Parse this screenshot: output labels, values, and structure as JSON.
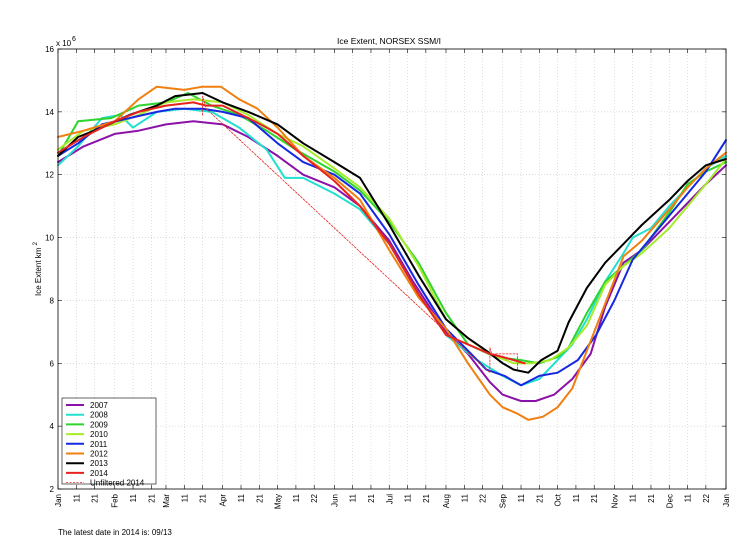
{
  "chart_data": {
    "type": "line",
    "title": "Ice Extent, NORSEX SSM/I",
    "ylabel": "Ice Extent km",
    "ylabel_superscript": "2",
    "y_exponent_base": "x 10",
    "y_exponent": "6",
    "ylim": [
      2,
      16
    ],
    "yticks": [
      2,
      4,
      6,
      8,
      10,
      12,
      14,
      16
    ],
    "xlim": [
      1,
      366
    ],
    "x_ticks": [
      {
        "d": 1,
        "label": "Jan"
      },
      {
        "d": 11,
        "label": "11"
      },
      {
        "d": 21,
        "label": "21"
      },
      {
        "d": 32,
        "label": "Feb"
      },
      {
        "d": 42,
        "label": "11"
      },
      {
        "d": 52,
        "label": "21"
      },
      {
        "d": 60,
        "label": "Mar"
      },
      {
        "d": 70,
        "label": "11"
      },
      {
        "d": 80,
        "label": "21"
      },
      {
        "d": 91,
        "label": "Apr"
      },
      {
        "d": 101,
        "label": "11"
      },
      {
        "d": 111,
        "label": "21"
      },
      {
        "d": 121,
        "label": "May"
      },
      {
        "d": 131,
        "label": "11"
      },
      {
        "d": 141,
        "label": "22"
      },
      {
        "d": 152,
        "label": "Jun"
      },
      {
        "d": 162,
        "label": "11"
      },
      {
        "d": 172,
        "label": "21"
      },
      {
        "d": 182,
        "label": "Jul"
      },
      {
        "d": 192,
        "label": "11"
      },
      {
        "d": 202,
        "label": "21"
      },
      {
        "d": 213,
        "label": "Aug"
      },
      {
        "d": 223,
        "label": "11"
      },
      {
        "d": 233,
        "label": "22"
      },
      {
        "d": 244,
        "label": "Sep"
      },
      {
        "d": 254,
        "label": "11"
      },
      {
        "d": 264,
        "label": "21"
      },
      {
        "d": 274,
        "label": "Oct"
      },
      {
        "d": 284,
        "label": "11"
      },
      {
        "d": 294,
        "label": "21"
      },
      {
        "d": 305,
        "label": "Nov"
      },
      {
        "d": 315,
        "label": "11"
      },
      {
        "d": 325,
        "label": "21"
      },
      {
        "d": 335,
        "label": "Dec"
      },
      {
        "d": 345,
        "label": "11"
      },
      {
        "d": 355,
        "label": "22"
      },
      {
        "d": 366,
        "label": "Jan"
      }
    ],
    "grid": "dotted",
    "legend_position": "bottom-left",
    "series": [
      {
        "name": "2007",
        "color": "#8b12a8",
        "points": [
          [
            1,
            12.4
          ],
          [
            15,
            12.9
          ],
          [
            32,
            13.3
          ],
          [
            45,
            13.4
          ],
          [
            60,
            13.6
          ],
          [
            75,
            13.7
          ],
          [
            91,
            13.6
          ],
          [
            105,
            13.2
          ],
          [
            121,
            12.6
          ],
          [
            135,
            12.0
          ],
          [
            152,
            11.6
          ],
          [
            166,
            11.0
          ],
          [
            182,
            9.9
          ],
          [
            195,
            8.6
          ],
          [
            213,
            7.0
          ],
          [
            225,
            6.3
          ],
          [
            237,
            5.4
          ],
          [
            244,
            5.0
          ],
          [
            254,
            4.8
          ],
          [
            262,
            4.8
          ],
          [
            272,
            5.0
          ],
          [
            282,
            5.5
          ],
          [
            292,
            6.3
          ],
          [
            300,
            7.8
          ],
          [
            310,
            9.2
          ],
          [
            320,
            9.6
          ],
          [
            335,
            10.5
          ],
          [
            345,
            11.1
          ],
          [
            355,
            11.7
          ],
          [
            366,
            12.3
          ]
        ]
      },
      {
        "name": "2008",
        "color": "#22e0d0",
        "points": [
          [
            1,
            12.3
          ],
          [
            12,
            12.9
          ],
          [
            25,
            13.8
          ],
          [
            35,
            13.9
          ],
          [
            42,
            13.5
          ],
          [
            55,
            14.0
          ],
          [
            70,
            14.1
          ],
          [
            85,
            14.0
          ],
          [
            100,
            13.5
          ],
          [
            115,
            12.8
          ],
          [
            125,
            11.9
          ],
          [
            135,
            11.9
          ],
          [
            152,
            11.4
          ],
          [
            166,
            10.9
          ],
          [
            182,
            9.8
          ],
          [
            198,
            8.2
          ],
          [
            213,
            6.9
          ],
          [
            230,
            6.1
          ],
          [
            244,
            5.6
          ],
          [
            254,
            5.3
          ],
          [
            264,
            5.5
          ],
          [
            274,
            6.1
          ],
          [
            282,
            6.6
          ],
          [
            290,
            7.4
          ],
          [
            300,
            8.6
          ],
          [
            310,
            9.5
          ],
          [
            315,
            10.0
          ],
          [
            325,
            10.3
          ],
          [
            335,
            11.0
          ],
          [
            345,
            11.6
          ],
          [
            355,
            12.2
          ],
          [
            366,
            12.6
          ]
        ]
      },
      {
        "name": "2009",
        "color": "#2ed32e",
        "points": [
          [
            1,
            12.6
          ],
          [
            12,
            13.7
          ],
          [
            30,
            13.8
          ],
          [
            45,
            14.2
          ],
          [
            60,
            14.3
          ],
          [
            72,
            14.6
          ],
          [
            85,
            14.2
          ],
          [
            100,
            13.9
          ],
          [
            115,
            13.4
          ],
          [
            131,
            12.8
          ],
          [
            152,
            12.1
          ],
          [
            166,
            11.5
          ],
          [
            182,
            10.5
          ],
          [
            198,
            9.2
          ],
          [
            213,
            7.6
          ],
          [
            225,
            6.6
          ],
          [
            240,
            6.2
          ],
          [
            254,
            6.1
          ],
          [
            264,
            6.0
          ],
          [
            274,
            6.2
          ],
          [
            280,
            6.5
          ],
          [
            290,
            7.6
          ],
          [
            300,
            8.6
          ],
          [
            310,
            9.1
          ],
          [
            320,
            9.6
          ],
          [
            335,
            10.8
          ],
          [
            345,
            11.7
          ],
          [
            355,
            12.1
          ],
          [
            366,
            12.4
          ]
        ]
      },
      {
        "name": "2010",
        "color": "#a6ec2a",
        "points": [
          [
            1,
            12.8
          ],
          [
            15,
            13.4
          ],
          [
            32,
            13.6
          ],
          [
            45,
            13.9
          ],
          [
            60,
            14.3
          ],
          [
            75,
            14.4
          ],
          [
            91,
            14.3
          ],
          [
            105,
            13.9
          ],
          [
            121,
            13.3
          ],
          [
            135,
            12.9
          ],
          [
            152,
            12.2
          ],
          [
            166,
            11.6
          ],
          [
            182,
            10.6
          ],
          [
            198,
            9.1
          ],
          [
            213,
            7.4
          ],
          [
            225,
            6.8
          ],
          [
            237,
            6.3
          ],
          [
            250,
            6.0
          ],
          [
            260,
            6.0
          ],
          [
            270,
            6.1
          ],
          [
            280,
            6.5
          ],
          [
            290,
            7.2
          ],
          [
            300,
            8.5
          ],
          [
            310,
            9.1
          ],
          [
            320,
            9.5
          ],
          [
            335,
            10.3
          ],
          [
            345,
            11.0
          ],
          [
            355,
            11.7
          ],
          [
            366,
            12.5
          ]
        ]
      },
      {
        "name": "2011",
        "color": "#1628e0",
        "points": [
          [
            1,
            12.6
          ],
          [
            12,
            13.0
          ],
          [
            25,
            13.6
          ],
          [
            40,
            13.8
          ],
          [
            55,
            14.0
          ],
          [
            65,
            14.1
          ],
          [
            80,
            14.1
          ],
          [
            91,
            14.0
          ],
          [
            105,
            13.8
          ],
          [
            121,
            13.0
          ],
          [
            135,
            12.4
          ],
          [
            152,
            12.0
          ],
          [
            166,
            11.4
          ],
          [
            182,
            10.1
          ],
          [
            198,
            8.5
          ],
          [
            213,
            7.1
          ],
          [
            225,
            6.4
          ],
          [
            235,
            5.8
          ],
          [
            245,
            5.6
          ],
          [
            254,
            5.3
          ],
          [
            264,
            5.6
          ],
          [
            274,
            5.7
          ],
          [
            285,
            6.1
          ],
          [
            295,
            6.9
          ],
          [
            305,
            8.0
          ],
          [
            315,
            9.3
          ],
          [
            325,
            10.0
          ],
          [
            335,
            10.7
          ],
          [
            345,
            11.4
          ],
          [
            355,
            12.1
          ],
          [
            366,
            13.1
          ]
        ]
      },
      {
        "name": "2012",
        "color": "#f07f10",
        "points": [
          [
            1,
            13.2
          ],
          [
            15,
            13.4
          ],
          [
            32,
            13.7
          ],
          [
            45,
            14.4
          ],
          [
            55,
            14.8
          ],
          [
            70,
            14.7
          ],
          [
            80,
            14.8
          ],
          [
            90,
            14.8
          ],
          [
            100,
            14.4
          ],
          [
            110,
            14.1
          ],
          [
            121,
            13.5
          ],
          [
            135,
            12.6
          ],
          [
            152,
            11.9
          ],
          [
            166,
            11.2
          ],
          [
            182,
            9.6
          ],
          [
            198,
            8.1
          ],
          [
            213,
            7.1
          ],
          [
            225,
            6.0
          ],
          [
            237,
            5.0
          ],
          [
            244,
            4.6
          ],
          [
            252,
            4.4
          ],
          [
            258,
            4.2
          ],
          [
            266,
            4.3
          ],
          [
            274,
            4.6
          ],
          [
            282,
            5.2
          ],
          [
            290,
            6.4
          ],
          [
            300,
            7.9
          ],
          [
            310,
            9.4
          ],
          [
            320,
            9.9
          ],
          [
            335,
            10.9
          ],
          [
            345,
            11.6
          ],
          [
            355,
            12.2
          ],
          [
            366,
            12.7
          ]
        ]
      },
      {
        "name": "2013",
        "color": "#000000",
        "points": [
          [
            1,
            12.6
          ],
          [
            12,
            13.2
          ],
          [
            25,
            13.5
          ],
          [
            40,
            13.9
          ],
          [
            55,
            14.2
          ],
          [
            65,
            14.5
          ],
          [
            80,
            14.6
          ],
          [
            91,
            14.3
          ],
          [
            105,
            14.0
          ],
          [
            121,
            13.6
          ],
          [
            135,
            13.0
          ],
          [
            152,
            12.4
          ],
          [
            166,
            11.9
          ],
          [
            182,
            10.4
          ],
          [
            198,
            8.8
          ],
          [
            213,
            7.4
          ],
          [
            225,
            6.8
          ],
          [
            235,
            6.4
          ],
          [
            244,
            6.0
          ],
          [
            250,
            5.8
          ],
          [
            258,
            5.7
          ],
          [
            265,
            6.1
          ],
          [
            274,
            6.4
          ],
          [
            280,
            7.3
          ],
          [
            290,
            8.4
          ],
          [
            300,
            9.2
          ],
          [
            310,
            9.8
          ],
          [
            320,
            10.4
          ],
          [
            335,
            11.2
          ],
          [
            345,
            11.8
          ],
          [
            355,
            12.3
          ],
          [
            366,
            12.5
          ]
        ]
      },
      {
        "name": "2014",
        "color": "#e8221e",
        "points": [
          [
            1,
            12.7
          ],
          [
            15,
            13.2
          ],
          [
            32,
            13.7
          ],
          [
            45,
            14.0
          ],
          [
            60,
            14.2
          ],
          [
            75,
            14.3
          ],
          [
            82,
            14.2
          ],
          [
            91,
            14.2
          ],
          [
            105,
            13.8
          ],
          [
            115,
            13.5
          ],
          [
            121,
            13.3
          ],
          [
            135,
            12.6
          ],
          [
            152,
            11.8
          ],
          [
            166,
            11.0
          ],
          [
            182,
            9.8
          ],
          [
            198,
            8.2
          ],
          [
            213,
            6.9
          ],
          [
            225,
            6.6
          ],
          [
            237,
            6.3
          ],
          [
            244,
            6.2
          ],
          [
            250,
            6.1
          ],
          [
            256,
            6.0
          ]
        ]
      },
      {
        "name": "Unfiltered 2014",
        "color": "#e8221e",
        "dash": "2,1.5",
        "points": [
          [
            80,
            13.9
          ],
          [
            80,
            14.5
          ],
          [
            82,
            14.1
          ],
          [
            237,
            5.7
          ],
          [
            237,
            6.5
          ],
          [
            238,
            6.3
          ],
          [
            252,
            6.3
          ],
          [
            252,
            5.8
          ]
        ]
      }
    ]
  },
  "footer": {
    "latest_date_text": "The latest date in 2014 is: 09/13"
  }
}
